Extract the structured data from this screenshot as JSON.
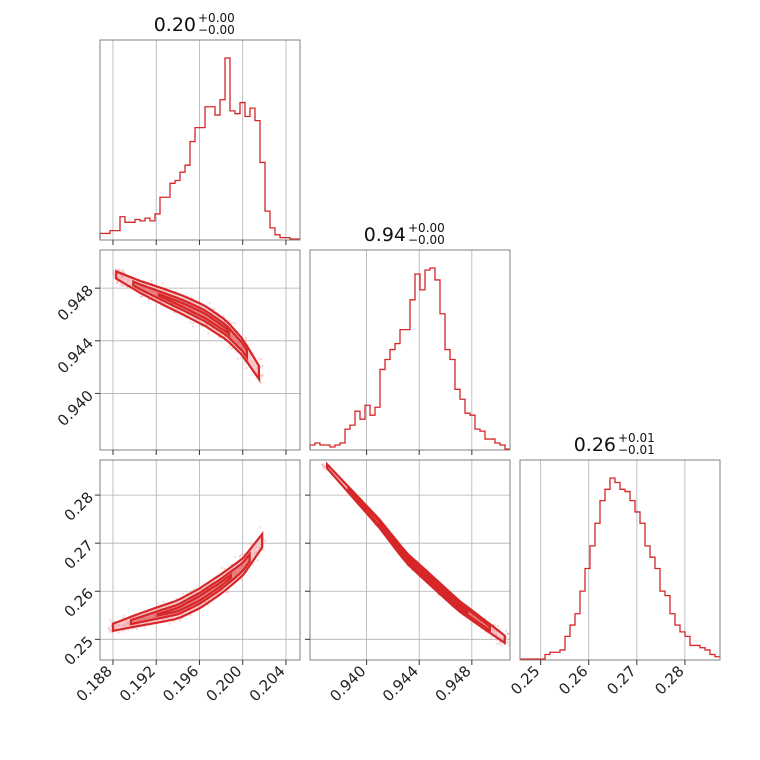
{
  "chart_data": {
    "type": "corner",
    "colors": {
      "main": "#d62728",
      "fill": "#f4a6ac",
      "scatter": "#f2a0a6",
      "grid": "#b0b0b0"
    },
    "params": [
      {
        "title_value": "0.20",
        "title_upper": "+0.00",
        "title_lower": "−0.00",
        "range": [
          0.1868,
          0.2053
        ],
        "ticks": [
          "0.188",
          "0.192",
          "0.196",
          "0.200",
          "0.204"
        ],
        "tick_values": [
          0.188,
          0.192,
          0.196,
          0.2,
          0.204
        ]
      },
      {
        "title_value": "0.94",
        "title_upper": "+0.00",
        "title_lower": "−0.00",
        "range": [
          0.9357,
          0.9509
        ],
        "ticks": [
          "0.940",
          "0.944",
          "0.948"
        ],
        "tick_values": [
          0.94,
          0.944,
          0.948
        ]
      },
      {
        "title_value": "0.26",
        "title_upper": "+0.01",
        "title_lower": "−0.01",
        "range": [
          0.2457,
          0.2873
        ],
        "ticks": [
          "0.25",
          "0.26",
          "0.27",
          "0.28"
        ],
        "tick_values": [
          0.25,
          0.26,
          0.27,
          0.28
        ]
      }
    ],
    "histograms": [
      {
        "param": 0,
        "counts": [
          4,
          4,
          6,
          6,
          16,
          12,
          12,
          14,
          13,
          15,
          13,
          18,
          30,
          30,
          40,
          42,
          48,
          53,
          70,
          80,
          80,
          95,
          95,
          89,
          100,
          130,
          92,
          90,
          98,
          88,
          94,
          85,
          55,
          20,
          8,
          3,
          1,
          1,
          0,
          0
        ]
      },
      {
        "param": 1,
        "counts": [
          2,
          3,
          2,
          2,
          1,
          2,
          3,
          10,
          12,
          19,
          15,
          22,
          17,
          21,
          40,
          45,
          50,
          53,
          60,
          60,
          75,
          88,
          80,
          90,
          91,
          85,
          68,
          50,
          45,
          30,
          25,
          18,
          17,
          10,
          9,
          5,
          5,
          3,
          2,
          0
        ]
      },
      {
        "param": 2,
        "counts": [
          0,
          0,
          0,
          0,
          0,
          2,
          3,
          3,
          4,
          10,
          15,
          20,
          30,
          40,
          50,
          60,
          70,
          75,
          80,
          78,
          75,
          74,
          70,
          65,
          60,
          50,
          45,
          40,
          30,
          28,
          20,
          15,
          12,
          10,
          6,
          6,
          5,
          4,
          2,
          1
        ]
      }
    ],
    "pairs": [
      {
        "x_param": 0,
        "y_param": 1,
        "trend": [
          [
            0.1883,
            0.949
          ],
          [
            0.1905,
            0.9481
          ],
          [
            0.1925,
            0.9474
          ],
          [
            0.1945,
            0.9467
          ],
          [
            0.1965,
            0.9459
          ],
          [
            0.1985,
            0.9448
          ],
          [
            0.2,
            0.9435
          ],
          [
            0.2015,
            0.9416
          ]
        ]
      },
      {
        "x_param": 0,
        "y_param": 2,
        "trend": [
          [
            0.188,
            0.2525
          ],
          [
            0.19,
            0.2538
          ],
          [
            0.192,
            0.255
          ],
          [
            0.194,
            0.2562
          ],
          [
            0.196,
            0.2585
          ],
          [
            0.198,
            0.2615
          ],
          [
            0.2,
            0.265
          ],
          [
            0.2018,
            0.2705
          ]
        ]
      },
      {
        "x_param": 1,
        "y_param": 2,
        "trend": [
          [
            0.937,
            0.286
          ],
          [
            0.939,
            0.28
          ],
          [
            0.941,
            0.274
          ],
          [
            0.943,
            0.267
          ],
          [
            0.945,
            0.262
          ],
          [
            0.947,
            0.257
          ],
          [
            0.949,
            0.253
          ],
          [
            0.9505,
            0.25
          ]
        ]
      }
    ],
    "grid": true
  }
}
